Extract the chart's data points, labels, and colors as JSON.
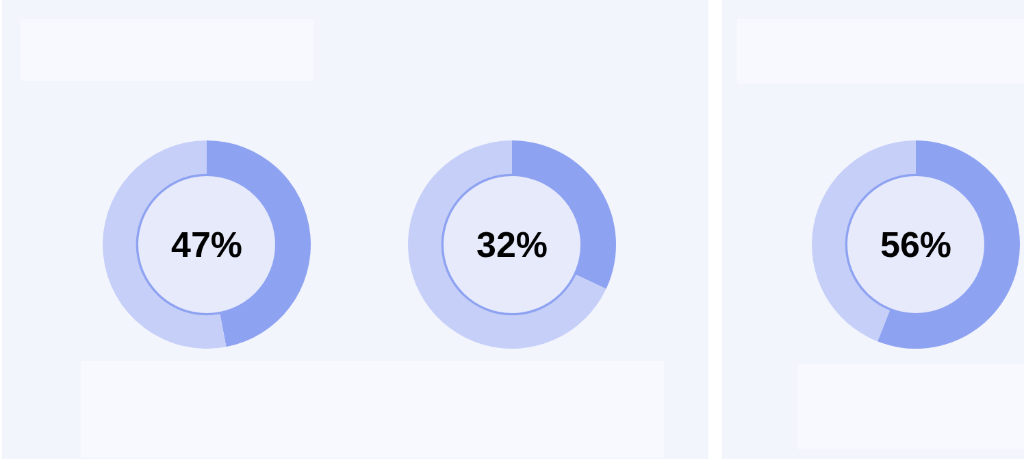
{
  "chart_data": [
    {
      "type": "donut",
      "categories": [
        null,
        null
      ],
      "values": [
        47,
        53
      ],
      "colors": [
        "#8ea2f2",
        "#c6cff8"
      ],
      "annotations": [
        "47%"
      ]
    },
    {
      "type": "donut",
      "categories": [
        null,
        null
      ],
      "values": [
        32,
        68
      ],
      "colors": [
        "#8ea2f2",
        "#c6cff8"
      ],
      "annotations": [
        "32%"
      ]
    },
    {
      "type": "donut",
      "categories": [
        null,
        null
      ],
      "values": [
        56,
        44
      ],
      "colors": [
        "#8ea2f2",
        "#c6cff8"
      ],
      "annotations": [
        "56%"
      ]
    }
  ]
}
